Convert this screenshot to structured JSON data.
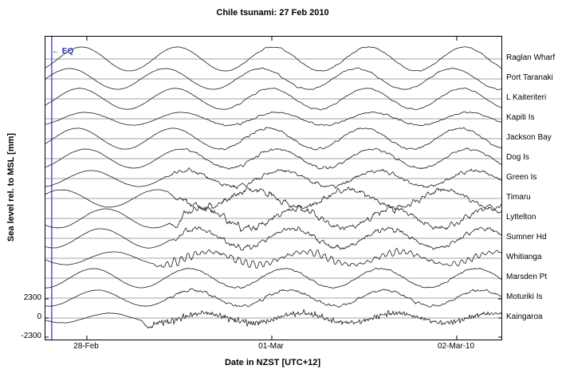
{
  "title": "Chile tsunami: 27 Feb 2010",
  "axes": {
    "ylabel": "Sea level rel. to MSL [mm]",
    "xlabel": "Date in NZST  [UTC+12]"
  },
  "annotations": {
    "eq_text": "← EQ"
  },
  "colors": {
    "eq_blue": "#2a2acc",
    "grid_gray": "#a3a3a3",
    "trace_black": "#1b1b1b",
    "axis_black": "#000000"
  },
  "chart_data": {
    "type": "line",
    "title": "Chile tsunami: 27 Feb 2010",
    "xlabel": "Date in NZST  [UTC+12]",
    "ylabel": "Sea level rel. to MSL [mm]",
    "x_axis": {
      "tick_labels": [
        "28-Feb",
        "01-Mar",
        "02-Mar-10"
      ],
      "tick_days": [
        0,
        1,
        2
      ],
      "domain_days": [
        -0.224,
        2.241
      ],
      "timezone": "NZST [UTC+12]"
    },
    "y_axis": {
      "tick_labels": [
        "2300",
        "0",
        "-2300"
      ],
      "tick_mm": [
        2300,
        0,
        -2300
      ],
      "stack_spacing_mm": 2400,
      "grid": true
    },
    "eq": {
      "day": -0.19,
      "label": "EQ",
      "note": "earthquake time marker, vertical blue line"
    },
    "tide_period_hours": 12.42,
    "legend_position": "right-outside",
    "series": [
      {
        "name": "Raglan Wharf",
        "tide_amp_mm": 1440,
        "tide_phase_hr": 1.6,
        "tsunami_amp_mm": 120,
        "arrival_day": 0.81,
        "character": "smooth",
        "noise_mm": 12,
        "dip_mm": 0
      },
      {
        "name": "Port Taranaki",
        "tide_amp_mm": 1250,
        "tide_phase_hr": 0.0,
        "tsunami_amp_mm": 150,
        "arrival_day": 0.78,
        "character": "smooth",
        "noise_mm": 15,
        "dip_mm": 0
      },
      {
        "name": "L Kaiteriteri",
        "tide_amp_mm": 1250,
        "tide_phase_hr": 1.3,
        "tsunami_amp_mm": 140,
        "arrival_day": 0.65,
        "character": "smooth",
        "noise_mm": 15,
        "dip_mm": 0
      },
      {
        "name": "Kapiti Is",
        "tide_amp_mm": 770,
        "tide_phase_hr": 2.1,
        "tsunami_amp_mm": 160,
        "arrival_day": 0.57,
        "character": "noisy",
        "noise_mm": 15,
        "dip_mm": 0
      },
      {
        "name": "Jackson Bay",
        "tide_amp_mm": 1250,
        "tide_phase_hr": 1.0,
        "tsunami_amp_mm": 200,
        "arrival_day": 0.66,
        "character": "noisy",
        "noise_mm": 15,
        "dip_mm": 0
      },
      {
        "name": "Dog Is",
        "tide_amp_mm": 1150,
        "tide_phase_hr": 2.1,
        "tsunami_amp_mm": 250,
        "arrival_day": 0.5,
        "character": "noisy",
        "noise_mm": 18,
        "dip_mm": 0
      },
      {
        "name": "Green Is",
        "tide_amp_mm": 960,
        "tide_phase_hr": 2.8,
        "tsunami_amp_mm": 380,
        "arrival_day": 0.42,
        "character": "noisy",
        "noise_mm": 18,
        "dip_mm": 0
      },
      {
        "name": "Timaru",
        "tide_amp_mm": 1050,
        "tide_phase_hr": -1.0,
        "tsunami_amp_mm": 560,
        "arrival_day": 0.44,
        "character": "noisy",
        "noise_mm": 20,
        "dip_mm": 400
      },
      {
        "name": "Lyttelton",
        "tide_amp_mm": 1150,
        "tide_phase_hr": 4.7,
        "tsunami_amp_mm": 650,
        "arrival_day": 0.45,
        "character": "noisy",
        "noise_mm": 20,
        "dip_mm": 900
      },
      {
        "name": "Sumner Hd",
        "tide_amp_mm": 1150,
        "tide_phase_hr": 4.1,
        "tsunami_amp_mm": 480,
        "arrival_day": 0.45,
        "character": "noisy",
        "noise_mm": 18,
        "dip_mm": 350
      },
      {
        "name": "Whitianga",
        "tide_amp_mm": 770,
        "tide_phase_hr": 5.7,
        "tsunami_amp_mm": 560,
        "arrival_day": 0.36,
        "character": "ringing",
        "noise_mm": 15,
        "dip_mm": 250
      },
      {
        "name": "Marsden Pt",
        "tide_amp_mm": 1150,
        "tide_phase_hr": 3.1,
        "tsunami_amp_mm": 150,
        "arrival_day": 0.5,
        "character": "noisy",
        "noise_mm": 12,
        "dip_mm": 0
      },
      {
        "name": "Moturiki Is",
        "tide_amp_mm": 960,
        "tide_phase_hr": 3.6,
        "tsunami_amp_mm": 290,
        "arrival_day": 0.38,
        "character": "noisy",
        "noise_mm": 15,
        "dip_mm": 0
      },
      {
        "name": "Kaingaroa",
        "tide_amp_mm": 575,
        "tide_phase_hr": 5.2,
        "tsunami_amp_mm": 480,
        "arrival_day": 0.3,
        "character": "dense",
        "noise_mm": 25,
        "dip_mm": 700
      }
    ]
  }
}
